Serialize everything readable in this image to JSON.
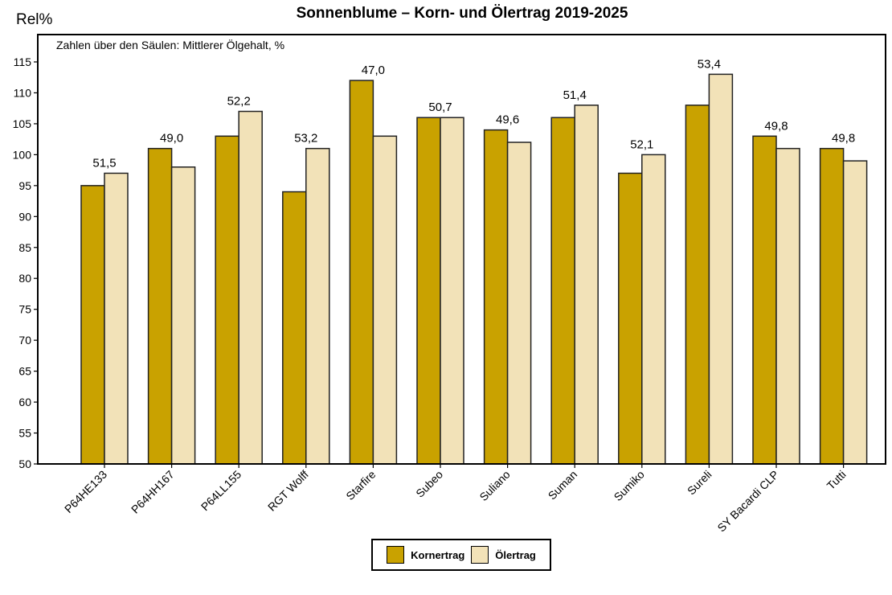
{
  "header": {
    "title": "Sonnenblume – Korn- und Ölertrag 2019-2025",
    "ylabel": "Rel%",
    "note": "Zahlen über den Säulen: Mittlerer Ölgehalt, %"
  },
  "legend": {
    "items": [
      {
        "label": "Kornertrag",
        "color": "#c9a200"
      },
      {
        "label": "Ölertrag",
        "color": "#f2e2b8"
      }
    ]
  },
  "chart_data": {
    "type": "bar",
    "title": "Sonnenblume – Korn- und Ölertrag 2019-2025",
    "subtitle": "Zahlen über den Säulen: Mittlerer Ölgehalt, %",
    "xlabel": "",
    "ylabel": "Rel%",
    "ylim": [
      50,
      118
    ],
    "yticks": [
      50,
      55,
      60,
      65,
      70,
      75,
      80,
      85,
      90,
      95,
      100,
      105,
      110,
      115
    ],
    "grid": false,
    "legend_position": "bottom",
    "categories": [
      "P64HE133",
      "P64HH167",
      "P64LL155",
      "RGT Wolff",
      "Starfire",
      "Subeo",
      "Suliano",
      "Suman",
      "Sumiko",
      "Sureli",
      "SY Bacardi CLP",
      "Tutti"
    ],
    "series": [
      {
        "name": "Kornertrag",
        "color": "#c9a200",
        "values": [
          95,
          101,
          103,
          94,
          112,
          106,
          104,
          106,
          97,
          108,
          103,
          101
        ]
      },
      {
        "name": "Ölertrag",
        "color": "#f2e2b8",
        "values": [
          97,
          98,
          107,
          101,
          103,
          106,
          102,
          108,
          100,
          113,
          101,
          99
        ]
      }
    ],
    "annotations": {
      "name": "Mittlerer Ölgehalt, %",
      "values": [
        "51,5",
        "49,0",
        "52,2",
        "53,2",
        "47,0",
        "50,7",
        "49,6",
        "51,4",
        "52,1",
        "53,4",
        "49,8",
        "49,8"
      ]
    }
  }
}
